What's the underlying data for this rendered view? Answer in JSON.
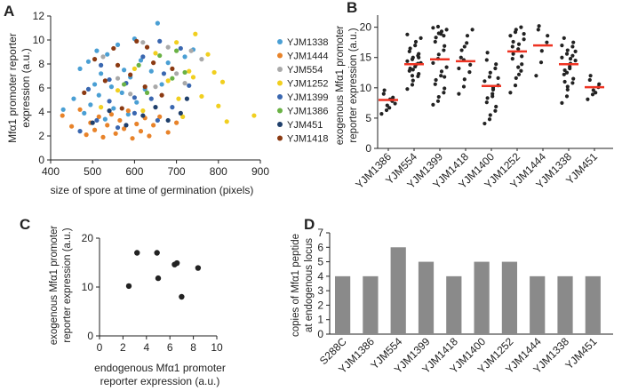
{
  "panels": {
    "A": "A",
    "B": "B",
    "C": "C",
    "D": "D"
  },
  "colors": {
    "YJM1338": "#4a9fd4",
    "YJM1444": "#e8832a",
    "YJM554": "#a9a9a9",
    "YJM1252": "#f1cf1f",
    "YJM1399": "#3a67b0",
    "YJM1386": "#6ab245",
    "YJM451": "#1f3f6b",
    "YJM1418": "#8b3a12",
    "bar": "#8a8a8a",
    "median": "#ee3322",
    "dot": "#222222"
  },
  "chart_data": [
    {
      "id": "A",
      "type": "scatter",
      "title": "",
      "xlabel": "size of spore at time of germination (pixels)",
      "ylabel_lines": [
        "Mfα1 promoter reporter",
        "expression (a.u.)"
      ],
      "xlim": [
        400,
        900
      ],
      "ylim": [
        0,
        12
      ],
      "xticks": [
        "400",
        "500",
        "600",
        "700",
        "800",
        "900"
      ],
      "yticks": [
        "0",
        "2",
        "4",
        "6",
        "8",
        "10",
        "12"
      ],
      "legend_position": "right",
      "series": [
        {
          "name": "YJM1338",
          "points": [
            [
              430,
              4.2
            ],
            [
              455,
              5.1
            ],
            [
              470,
              7.6
            ],
            [
              480,
              3.9
            ],
            [
              490,
              8.2
            ],
            [
              495,
              4.6
            ],
            [
              505,
              6.3
            ],
            [
              510,
              9.1
            ],
            [
              515,
              5.4
            ],
            [
              520,
              7.2
            ],
            [
              530,
              3.4
            ],
            [
              535,
              8.8
            ],
            [
              545,
              6.1
            ],
            [
              550,
              4.3
            ],
            [
              560,
              9.6
            ],
            [
              570,
              5.6
            ],
            [
              575,
              7.5
            ],
            [
              585,
              3.8
            ],
            [
              590,
              6.9
            ],
            [
              600,
              10.1
            ],
            [
              605,
              4.8
            ],
            [
              615,
              8.3
            ],
            [
              625,
              5.9
            ],
            [
              640,
              7.4
            ],
            [
              655,
              11.4
            ],
            [
              665,
              6.3
            ],
            [
              680,
              8.1
            ],
            [
              720,
              8.6
            ],
            [
              740,
              9.2
            ]
          ]
        },
        {
          "name": "YJM1444",
          "points": [
            [
              428,
              3.7
            ],
            [
              450,
              2.8
            ],
            [
              470,
              4.2
            ],
            [
              485,
              2.1
            ],
            [
              495,
              3.1
            ],
            [
              505,
              2.5
            ],
            [
              515,
              3.6
            ],
            [
              525,
              1.9
            ],
            [
              535,
              2.9
            ],
            [
              545,
              3.8
            ],
            [
              555,
              2.2
            ],
            [
              565,
              3.3
            ],
            [
              575,
              2.6
            ],
            [
              585,
              4.1
            ],
            [
              595,
              1.8
            ],
            [
              605,
              3.0
            ],
            [
              615,
              2.4
            ],
            [
              625,
              3.5
            ],
            [
              635,
              2.0
            ],
            [
              645,
              2.9
            ],
            [
              660,
              3.6
            ],
            [
              680,
              2.3
            ],
            [
              700,
              3.1
            ]
          ]
        },
        {
          "name": "YJM554",
          "points": [
            [
              525,
              8.6
            ],
            [
              560,
              6.8
            ],
            [
              590,
              5.5
            ],
            [
              620,
              9.8
            ],
            [
              650,
              6.1
            ],
            [
              680,
              9.4
            ],
            [
              700,
              7.2
            ],
            [
              720,
              6.4
            ],
            [
              735,
              9.1
            ],
            [
              760,
              8.4
            ]
          ]
        },
        {
          "name": "YJM1252",
          "points": [
            [
              520,
              4.4
            ],
            [
              560,
              5.8
            ],
            [
              600,
              7.6
            ],
            [
              620,
              4.1
            ],
            [
              650,
              8.9
            ],
            [
              680,
              6.6
            ],
            [
              700,
              9.8
            ],
            [
              715,
              3.6
            ],
            [
              730,
              7.4
            ],
            [
              745,
              10.5
            ],
            [
              760,
              5.3
            ],
            [
              775,
              8.8
            ],
            [
              790,
              7.3
            ],
            [
              800,
              4.5
            ],
            [
              810,
              6.5
            ],
            [
              820,
              3.2
            ],
            [
              885,
              3.7
            ],
            [
              705,
              5.1
            ],
            [
              740,
              6.9
            ]
          ]
        },
        {
          "name": "YJM1399",
          "points": [
            [
              470,
              2.4
            ],
            [
              490,
              5.9
            ],
            [
              510,
              3.3
            ],
            [
              520,
              7.9
            ],
            [
              540,
              4.9
            ],
            [
              560,
              2.7
            ],
            [
              580,
              6.4
            ],
            [
              600,
              3.9
            ],
            [
              620,
              8.6
            ],
            [
              640,
              5.1
            ],
            [
              655,
              3.3
            ],
            [
              670,
              7.2
            ],
            [
              690,
              4.4
            ],
            [
              710,
              9.3
            ],
            [
              730,
              6.2
            ],
            [
              540,
              6.7
            ],
            [
              600,
              5.2
            ],
            [
              660,
              9.9
            ]
          ]
        },
        {
          "name": "YJM1386",
          "points": [
            [
              575,
              6.3
            ],
            [
              610,
              7.9
            ],
            [
              630,
              5.6
            ],
            [
              660,
              8.7
            ],
            [
              690,
              6.8
            ],
            [
              700,
              9.1
            ],
            [
              720,
              7.3
            ]
          ]
        },
        {
          "name": "YJM451",
          "points": [
            [
              500,
              3.1
            ],
            [
              540,
              4.1
            ],
            [
              580,
              2.9
            ],
            [
              620,
              3.7
            ],
            [
              650,
              4.4
            ],
            [
              680,
              3.3
            ],
            [
              710,
              3.9
            ],
            [
              725,
              5.1
            ]
          ]
        },
        {
          "name": "YJM1418",
          "points": [
            [
              480,
              5.6
            ],
            [
              505,
              8.4
            ],
            [
              530,
              6.6
            ],
            [
              550,
              9.3
            ],
            [
              570,
              4.3
            ],
            [
              590,
              7.1
            ],
            [
              605,
              9.9
            ],
            [
              625,
              6.1
            ],
            [
              645,
              8.1
            ],
            [
              665,
              5.4
            ],
            [
              690,
              7.6
            ],
            [
              560,
              7.9
            ],
            [
              630,
              9.4
            ]
          ]
        }
      ]
    },
    {
      "id": "B",
      "type": "scatter",
      "title": "",
      "xlabel": "",
      "ylabel_lines": [
        "exogenous Mfα1 promoter",
        "reporter expression (a.u.)"
      ],
      "ylim": [
        0,
        22
      ],
      "yticks": [
        "0",
        "5",
        "10",
        "15",
        "20"
      ],
      "categories": [
        "YJM1386",
        "YJM554",
        "YJM1399",
        "YJM1418",
        "YJM1400",
        "YJM1252",
        "YJM1444",
        "YJM1338",
        "YJM451"
      ],
      "medians": [
        8.0,
        13.9,
        14.7,
        14.4,
        10.3,
        16.0,
        17.0,
        13.9,
        10.1
      ],
      "groups": [
        [
          5.7,
          6.3,
          7.1,
          7.8,
          8.4,
          9.0,
          9.6,
          6.7,
          8.1,
          7.4
        ],
        [
          9.8,
          10.5,
          11.2,
          11.9,
          12.3,
          12.8,
          13.2,
          13.5,
          13.8,
          14.1,
          14.4,
          14.7,
          15.0,
          15.3,
          15.6,
          16.0,
          16.5,
          17.0,
          17.6,
          18.2,
          18.8,
          12.0,
          13.0,
          14.0,
          15.0
        ],
        [
          7.2,
          7.8,
          8.5,
          9.2,
          9.9,
          10.6,
          11.3,
          12.0,
          12.7,
          13.4,
          14.1,
          14.8,
          15.5,
          16.2,
          16.9,
          17.6,
          18.3,
          18.9,
          19.3,
          19.6,
          19.9,
          20.1,
          19.0,
          18.6,
          11.8
        ],
        [
          9.0,
          10.2,
          11.4,
          12.6,
          13.8,
          15.0,
          16.2,
          17.4,
          18.6,
          19.6,
          13.2,
          14.6,
          16.8
        ],
        [
          4.1,
          4.8,
          5.5,
          6.2,
          6.9,
          7.6,
          8.3,
          9.0,
          9.7,
          10.4,
          11.1,
          11.8,
          12.5,
          13.2,
          13.9,
          14.6,
          15.8,
          8.6,
          10.0,
          11.6
        ],
        [
          9.2,
          10.4,
          11.6,
          12.8,
          13.9,
          14.8,
          15.6,
          16.4,
          17.2,
          18.0,
          18.6,
          19.2,
          19.6,
          20.0,
          15.2,
          16.8,
          17.6,
          13.4,
          12.2,
          18.9
        ],
        [
          12.0,
          14.2,
          16.1,
          17.5,
          18.6,
          19.6,
          20.2
        ],
        [
          7.5,
          8.6,
          9.7,
          10.8,
          11.5,
          12.2,
          12.9,
          13.5,
          14.0,
          14.5,
          15.0,
          15.6,
          16.2,
          16.8,
          17.5,
          18.2,
          11.0,
          13.2,
          14.8,
          16.0,
          17.0,
          12.5,
          10.2,
          15.3
        ],
        [
          8.1,
          8.9,
          9.6,
          10.1,
          10.6,
          11.3,
          12.0,
          9.2
        ]
      ]
    },
    {
      "id": "C",
      "type": "scatter",
      "title": "",
      "xlabel_lines": [
        "endogenous Mfα1 promoter",
        "reporter expression (a.u.)"
      ],
      "ylabel_lines": [
        "exogenous Mfα1 promoter",
        "reporter expression (a.u.)"
      ],
      "xlim": [
        0,
        10
      ],
      "ylim": [
        0,
        20
      ],
      "xticks": [
        "0",
        "2",
        "4",
        "6",
        "8",
        "10"
      ],
      "yticks": [
        "0",
        "10",
        "20"
      ],
      "points": [
        [
          2.5,
          10.2
        ],
        [
          3.2,
          17.0
        ],
        [
          4.9,
          17.0
        ],
        [
          5.0,
          11.8
        ],
        [
          6.4,
          14.6
        ],
        [
          6.6,
          14.9
        ],
        [
          7.0,
          8.0
        ],
        [
          8.4,
          13.9
        ]
      ]
    },
    {
      "id": "D",
      "type": "bar",
      "title": "",
      "xlabel": "",
      "ylabel_lines": [
        "copies of Mfα1 peptide",
        "at endogenous locus"
      ],
      "ylim": [
        0,
        7
      ],
      "yticks": [
        "0",
        "1",
        "2",
        "3",
        "4",
        "5",
        "6",
        "7"
      ],
      "categories": [
        "S288C",
        "YJM1386",
        "YJM554",
        "YJM1399",
        "YJM1418",
        "YJM1400",
        "YJM1252",
        "YJM1444",
        "YJM1338",
        "YJM451"
      ],
      "values": [
        4,
        4,
        6,
        5,
        4,
        5,
        5,
        4,
        4,
        4
      ]
    }
  ]
}
